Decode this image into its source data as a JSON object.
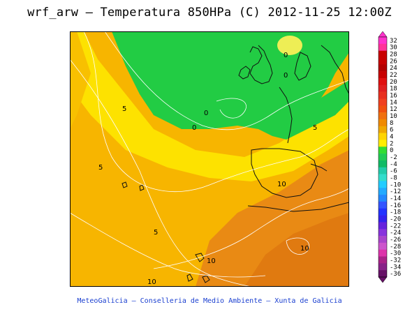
{
  "title": "wrf_arw – Temperatura 850HPa (C) 2012-11-25 12:00Z",
  "footer": "MeteoGalicia – Conselleria de Medio Ambiente – Xunta de Galicia",
  "colorbar": {
    "levels": [
      "32",
      "30",
      "28",
      "26",
      "24",
      "22",
      "20",
      "18",
      "16",
      "14",
      "12",
      "10",
      "8",
      "6",
      "4",
      "2",
      "0",
      "-2",
      "-4",
      "-6",
      "-8",
      "-10",
      "-12",
      "-14",
      "-16",
      "-18",
      "-20",
      "-22",
      "-24",
      "-26",
      "-28",
      "-30",
      "-32",
      "-34",
      "-36"
    ],
    "colors": [
      "#ff33cc",
      "#ff3399",
      "#c80000",
      "#c80000",
      "#b40000",
      "#c80000",
      "#e01010",
      "#e02020",
      "#e83020",
      "#f04020",
      "#f05010",
      "#f07010",
      "#f08a00",
      "#f0a800",
      "#ffd400",
      "#ffee00",
      "#33dd33",
      "#22cc55",
      "#11bb66",
      "#22ccaa",
      "#33ddcc",
      "#22ccff",
      "#22aaff",
      "#2288ff",
      "#3355ff",
      "#2233ff",
      "#3322ee",
      "#6622dd",
      "#8833dd",
      "#aa44cc",
      "#cc55cc",
      "#dd33aa",
      "#aa2288",
      "#882288",
      "#661166"
    ]
  },
  "contour_labels": [
    "0",
    "0",
    "0",
    "0",
    "5",
    "5",
    "5",
    "5",
    "10",
    "10",
    "10",
    "10"
  ]
}
